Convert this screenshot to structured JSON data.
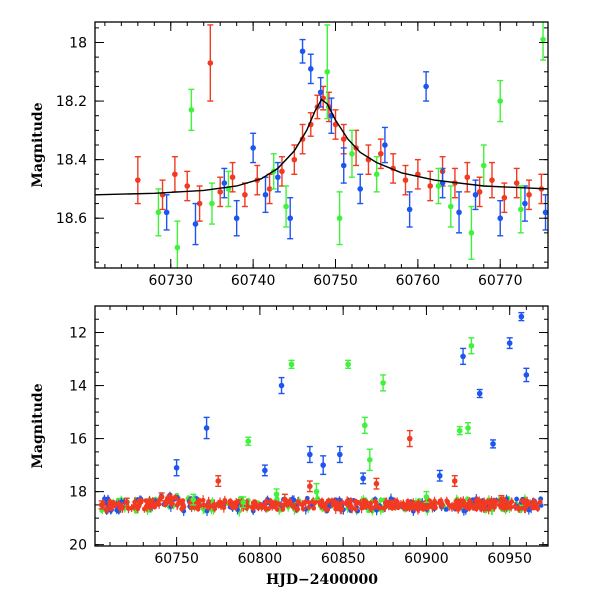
{
  "figure": {
    "xlabel": "HJD−2400000"
  },
  "colors": {
    "blue": "#1d55f0",
    "red": "#f23a22",
    "green": "#3ff23a",
    "model": "#000000"
  },
  "chart_data": [
    {
      "type": "scatter",
      "title": "",
      "xlabel": "",
      "ylabel": "Magnitude",
      "xlim": [
        60720.8,
        60775.8
      ],
      "ylim": [
        18.77,
        17.93
      ],
      "y_inverted": true,
      "xticks": [
        60730,
        60740,
        60750,
        60760,
        60770
      ],
      "yticks": [
        18.0,
        18.2,
        18.4,
        18.6
      ],
      "ytick_labels": [
        "18",
        "18.2",
        "18.4",
        "18.6"
      ],
      "model_curve": {
        "name": "model",
        "x": [
          60720.8,
          60728,
          60734,
          60738,
          60741,
          60743,
          60745,
          60746.5,
          60747.5,
          60748.3,
          60749,
          60750,
          60751.5,
          60753,
          60755,
          60758,
          60762,
          60768,
          60775.8
        ],
        "y": [
          18.52,
          18.515,
          18.505,
          18.49,
          18.465,
          18.43,
          18.37,
          18.3,
          18.235,
          18.195,
          18.21,
          18.265,
          18.33,
          18.375,
          18.41,
          18.445,
          18.47,
          18.49,
          18.5
        ]
      },
      "series": [
        {
          "name": "red",
          "color": "#f23a22",
          "x": [
            60726,
            60729,
            60730.5,
            60732,
            60733.5,
            60734.8,
            60736,
            60737.5,
            60739,
            60740.5,
            60742,
            60743.5,
            60745,
            60746,
            60747,
            60747.8,
            60748.5,
            60749.2,
            60750,
            60751,
            60752.5,
            60754,
            60755.5,
            60757,
            60758.5,
            60760,
            60761.5,
            60763,
            60764.5,
            60766,
            60767.5,
            60769,
            60770.5,
            60772,
            60773.5,
            60775
          ],
          "y": [
            18.47,
            18.52,
            18.45,
            18.49,
            18.55,
            18.07,
            18.51,
            18.46,
            18.52,
            18.47,
            18.5,
            18.44,
            18.4,
            18.33,
            18.28,
            18.22,
            18.19,
            18.22,
            18.28,
            18.33,
            18.36,
            18.4,
            18.38,
            18.43,
            18.47,
            18.45,
            18.49,
            18.44,
            18.48,
            18.46,
            18.51,
            18.47,
            18.53,
            18.48,
            18.52,
            18.5
          ],
          "err": [
            0.08,
            0.05,
            0.06,
            0.05,
            0.06,
            0.13,
            0.05,
            0.05,
            0.04,
            0.05,
            0.05,
            0.05,
            0.05,
            0.05,
            0.04,
            0.04,
            0.04,
            0.05,
            0.05,
            0.05,
            0.06,
            0.05,
            0.05,
            0.05,
            0.05,
            0.05,
            0.05,
            0.05,
            0.05,
            0.05,
            0.05,
            0.06,
            0.05,
            0.05,
            0.05,
            0.05
          ]
        },
        {
          "name": "blue",
          "color": "#1d55f0",
          "x": [
            60729.5,
            60733,
            60736.5,
            60738,
            60740,
            60741.5,
            60743,
            60744.5,
            60746,
            60747,
            60748.2,
            60749.5,
            60751,
            60753,
            60756,
            60759,
            60761,
            60763,
            60765,
            60767,
            60770,
            60773,
            60775.5
          ],
          "y": [
            18.58,
            18.62,
            18.48,
            18.6,
            18.36,
            18.52,
            18.46,
            18.6,
            18.03,
            18.09,
            18.17,
            18.25,
            18.42,
            18.5,
            18.35,
            18.57,
            18.15,
            18.48,
            18.58,
            18.52,
            18.6,
            18.55,
            18.58
          ],
          "err": [
            0.06,
            0.07,
            0.05,
            0.06,
            0.05,
            0.06,
            0.05,
            0.07,
            0.04,
            0.05,
            0.05,
            0.06,
            0.06,
            0.05,
            0.06,
            0.06,
            0.05,
            0.05,
            0.07,
            0.05,
            0.06,
            0.06,
            0.06
          ]
        },
        {
          "name": "green",
          "color": "#3ff23a",
          "x": [
            60728.5,
            60730.8,
            60732.5,
            60735,
            60737,
            60742.5,
            60744,
            60749,
            60750.5,
            60752,
            60755,
            60762.5,
            60764,
            60766.5,
            60768,
            60770,
            60772.5,
            60775.2
          ],
          "y": [
            18.58,
            18.7,
            18.23,
            18.55,
            18.5,
            18.44,
            18.56,
            18.1,
            18.6,
            18.38,
            18.45,
            18.49,
            18.56,
            18.65,
            18.42,
            18.2,
            18.57,
            17.99
          ],
          "err": [
            0.08,
            0.09,
            0.07,
            0.07,
            0.06,
            0.06,
            0.07,
            0.16,
            0.09,
            0.08,
            0.06,
            0.06,
            0.07,
            0.09,
            0.07,
            0.07,
            0.08,
            0.07
          ]
        }
      ]
    },
    {
      "type": "scatter",
      "title": "",
      "xlabel": "HJD−2400000",
      "ylabel": "Magnitude",
      "xlim": [
        60701,
        60973
      ],
      "ylim": [
        20.05,
        11.0
      ],
      "y_inverted": true,
      "xticks": [
        60750,
        60800,
        60850,
        60900,
        60950
      ],
      "yticks": [
        12,
        14,
        16,
        18,
        20
      ],
      "ytick_labels": [
        "12",
        "14",
        "16",
        "18",
        "20"
      ],
      "series": [
        {
          "name": "green",
          "color": "#3ff23a",
          "x": [
            60793,
            60819,
            60834,
            60853,
            60863,
            60866,
            60874,
            60920,
            60925,
            60927,
            60760,
            60790,
            60810,
            60900
          ],
          "y": [
            16.1,
            13.2,
            18.0,
            13.2,
            15.5,
            16.8,
            13.9,
            15.7,
            15.6,
            12.5,
            18.3,
            18.4,
            18.1,
            18.2
          ],
          "err": [
            0.15,
            0.15,
            0.3,
            0.15,
            0.3,
            0.4,
            0.3,
            0.15,
            0.2,
            0.3,
            0.2,
            0.2,
            0.2,
            0.2
          ]
        },
        {
          "name": "blue",
          "color": "#1d55f0",
          "x": [
            60750,
            60768,
            60813,
            60830,
            60838,
            60848,
            60922,
            60932,
            60940,
            60950,
            60957,
            60960,
            60803,
            60862,
            60908
          ],
          "y": [
            17.1,
            15.6,
            14.0,
            16.6,
            17.0,
            16.6,
            12.9,
            14.3,
            16.2,
            12.4,
            11.4,
            13.6,
            17.2,
            17.5,
            17.4
          ],
          "err": [
            0.3,
            0.4,
            0.3,
            0.3,
            0.35,
            0.3,
            0.3,
            0.15,
            0.15,
            0.2,
            0.15,
            0.25,
            0.2,
            0.2,
            0.2
          ]
        },
        {
          "name": "red",
          "color": "#f23a22",
          "x": [
            60705,
            60720,
            60741,
            60775,
            60815,
            60830,
            60870,
            60890,
            60917,
            60945
          ],
          "y": [
            18.5,
            18.4,
            18.2,
            17.6,
            18.3,
            17.8,
            17.7,
            16.0,
            17.6,
            18.3
          ],
          "err": [
            0.15,
            0.15,
            0.15,
            0.2,
            0.2,
            0.2,
            0.2,
            0.3,
            0.2,
            0.15
          ]
        }
      ],
      "baseline_band": {
        "name": "dense",
        "x_range": [
          60705,
          60970
        ],
        "center": 18.5,
        "spread": 0.25
      }
    }
  ]
}
